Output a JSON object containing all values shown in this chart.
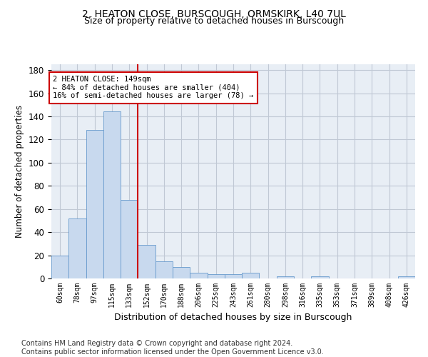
{
  "title": "2, HEATON CLOSE, BURSCOUGH, ORMSKIRK, L40 7UL",
  "subtitle": "Size of property relative to detached houses in Burscough",
  "xlabel": "Distribution of detached houses by size in Burscough",
  "ylabel": "Number of detached properties",
  "categories": [
    "60sqm",
    "78sqm",
    "97sqm",
    "115sqm",
    "133sqm",
    "152sqm",
    "170sqm",
    "188sqm",
    "206sqm",
    "225sqm",
    "243sqm",
    "261sqm",
    "280sqm",
    "298sqm",
    "316sqm",
    "335sqm",
    "353sqm",
    "371sqm",
    "389sqm",
    "408sqm",
    "426sqm"
  ],
  "values": [
    20,
    52,
    128,
    144,
    68,
    29,
    15,
    10,
    5,
    4,
    4,
    5,
    0,
    2,
    0,
    2,
    0,
    0,
    0,
    0,
    2
  ],
  "bar_color": "#c8d9ee",
  "bar_edge_color": "#6699cc",
  "vline_color": "#cc0000",
  "annotation_text": "2 HEATON CLOSE: 149sqm\n← 84% of detached houses are smaller (404)\n16% of semi-detached houses are larger (78) →",
  "annotation_box_color": "#cc0000",
  "ylim": [
    0,
    185
  ],
  "yticks": [
    0,
    20,
    40,
    60,
    80,
    100,
    120,
    140,
    160,
    180
  ],
  "bg_color": "#e8eef5",
  "grid_color": "#c0c8d4",
  "footer": "Contains HM Land Registry data © Crown copyright and database right 2024.\nContains public sector information licensed under the Open Government Licence v3.0.",
  "title_fontsize": 10,
  "subtitle_fontsize": 9,
  "xlabel_fontsize": 9,
  "ylabel_fontsize": 8.5,
  "footer_fontsize": 7
}
